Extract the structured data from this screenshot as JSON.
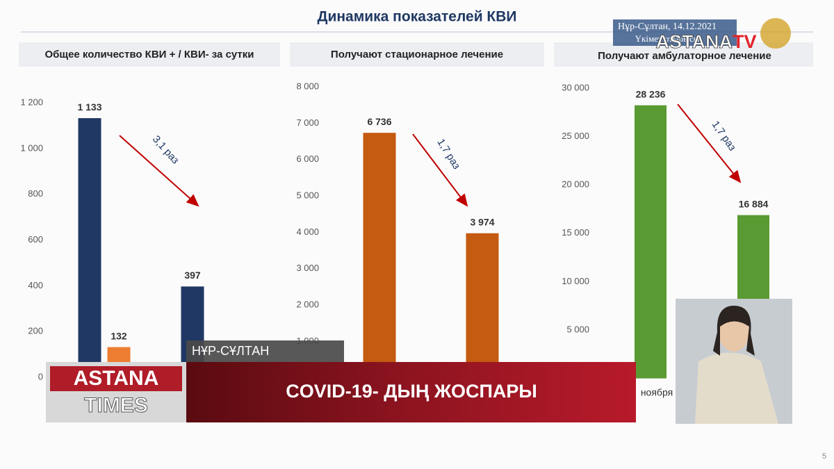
{
  "title": "Динамика показателей КВИ",
  "chart_data": [
    {
      "type": "bar",
      "title": "Общее количество КВИ + / КВИ- за сутки",
      "categories": [
        null,
        null
      ],
      "series": [
        {
          "color": "#1f3864",
          "values": [
            1133,
            397
          ],
          "value_labels": [
            "1 133",
            "397"
          ]
        },
        {
          "color": "#ed7d31",
          "values": [
            132,
            null
          ]
        }
      ],
      "ylim": [
        0,
        1200
      ],
      "yticks": [
        0,
        200,
        400,
        600,
        800,
        {
          "value": 1000,
          "label": "1 000"
        },
        {
          "value": 1200,
          "label": "1 200"
        }
      ],
      "annotation": "3,1 раз"
    },
    {
      "type": "bar",
      "title": "Получают стационарное лечение",
      "categories": [
        null,
        null
      ],
      "values": [
        6736,
        3974
      ],
      "value_labels": [
        "6 736",
        "3 974"
      ],
      "color": "#c55a11",
      "ylim": [
        0,
        8000
      ],
      "yticks": [
        {
          "value": 1000,
          "label": "1 000"
        },
        {
          "value": 2000,
          "label": "2 000"
        },
        {
          "value": 3000,
          "label": "3 000"
        },
        {
          "value": 4000,
          "label": "4 000"
        },
        {
          "value": 5000,
          "label": "5 000"
        },
        {
          "value": 6000,
          "label": "6 000"
        },
        {
          "value": 7000,
          "label": "7 000"
        },
        {
          "value": 8000,
          "label": "8 000"
        }
      ],
      "annotation": "1,7 раз"
    },
    {
      "type": "bar",
      "title": "Получают амбулаторное лечение",
      "categories": [
        "ноября",
        null
      ],
      "values": [
        28236,
        16884
      ],
      "value_labels": [
        "28 236",
        "16 884"
      ],
      "color": "#5a9a32",
      "ylim": [
        0,
        30000
      ],
      "yticks": [
        {
          "value": 5000,
          "label": "5 000"
        },
        {
          "value": 10000,
          "label": "10 000"
        },
        {
          "value": 15000,
          "label": "15 000"
        },
        {
          "value": 20000,
          "label": "20 000"
        },
        {
          "value": 25000,
          "label": "25 000"
        },
        {
          "value": 30000,
          "label": "30 000"
        }
      ],
      "annotation": "1,7 раз"
    }
  ],
  "slide_number": "5",
  "broadcast": {
    "place_date": "Нұр-Сұлтан, 14.12.2021",
    "event": "Үкімет отырысы",
    "channel_logo": [
      "ASTANA",
      "TV"
    ],
    "program_logo": [
      "ASTANA",
      "TIMES"
    ],
    "location": "НҰР-СҰЛТАН",
    "headline": "COVID-19- ДЫҢ ЖОСПАРЫ"
  }
}
